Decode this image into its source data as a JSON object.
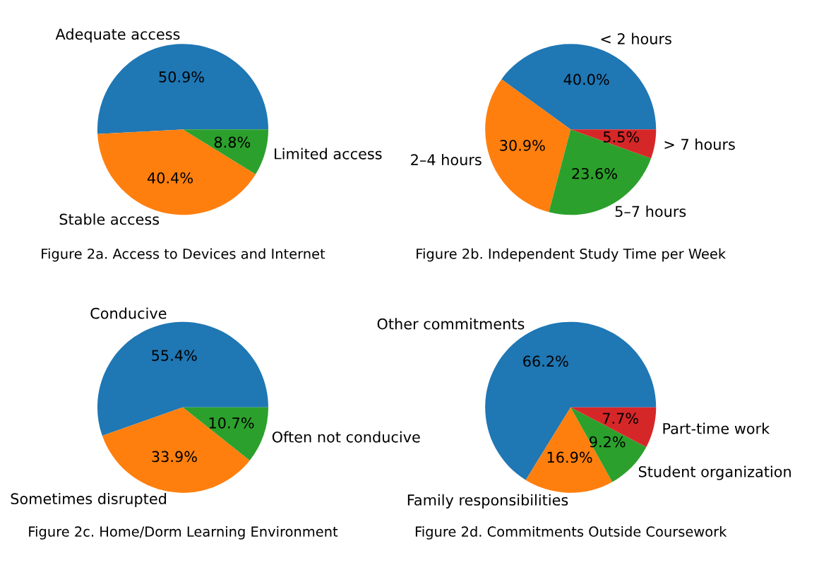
{
  "chart_data": [
    {
      "type": "pie",
      "title": "Figure 2a. Access to Devices and Internet",
      "categories": [
        "Adequate access",
        "Stable access",
        "Limited access"
      ],
      "values": [
        50.9,
        40.4,
        8.8
      ],
      "colors": [
        "#1f77b4",
        "#ff7f0e",
        "#2ca02c"
      ],
      "value_labels": [
        "50.9%",
        "40.4%",
        "8.8%"
      ]
    },
    {
      "type": "pie",
      "title": "Figure 2b. Independent Study Time per Week",
      "categories": [
        "< 2 hours",
        "2–4 hours",
        "5–7 hours",
        "> 7 hours"
      ],
      "values": [
        40.0,
        30.9,
        23.6,
        5.5
      ],
      "colors": [
        "#1f77b4",
        "#ff7f0e",
        "#2ca02c",
        "#d62728"
      ],
      "value_labels": [
        "40.0%",
        "30.9%",
        "23.6%",
        "5.5%"
      ]
    },
    {
      "type": "pie",
      "title": "Figure 2c. Home/Dorm Learning Environment",
      "categories": [
        "Conducive",
        "Sometimes disrupted",
        "Often not conducive"
      ],
      "values": [
        55.4,
        33.9,
        10.7
      ],
      "colors": [
        "#1f77b4",
        "#ff7f0e",
        "#2ca02c"
      ],
      "value_labels": [
        "55.4%",
        "33.9%",
        "10.7%"
      ]
    },
    {
      "type": "pie",
      "title": "Figure 2d. Commitments Outside Coursework",
      "categories": [
        "Other commitments",
        "Family responsibilities",
        "Student organization",
        "Part-time work"
      ],
      "values": [
        66.2,
        16.9,
        9.2,
        7.7
      ],
      "colors": [
        "#1f77b4",
        "#ff7f0e",
        "#2ca02c",
        "#d62728"
      ],
      "value_labels": [
        "66.2%",
        "16.9%",
        "9.2%",
        "7.7%"
      ]
    }
  ]
}
